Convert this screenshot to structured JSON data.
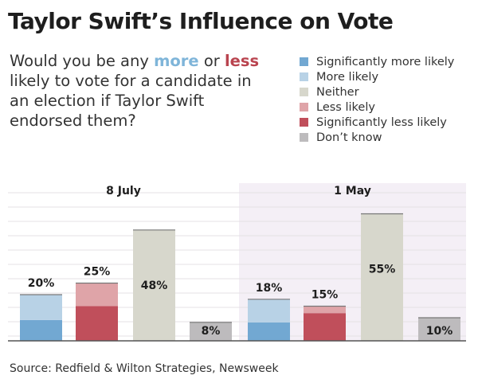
{
  "title": "Taylor Swift’s Influence on Vote",
  "question": {
    "part1": "Would you be any ",
    "more": "more",
    "part2": " or ",
    "less": "less",
    "part3": " likely to vote for a candidate in an election if Taylor Swift endorsed them?"
  },
  "legend": [
    {
      "label": "Significantly more likely",
      "color": "#72a8d2"
    },
    {
      "label": "More likely",
      "color": "#b8d2e6"
    },
    {
      "label": "Neither",
      "color": "#d7d7cc"
    },
    {
      "label": "Less likely",
      "color": "#dfa4a8"
    },
    {
      "label": "Significantly less likely",
      "color": "#c04f5b"
    },
    {
      "label": "Don’t know",
      "color": "#bdbbbd"
    }
  ],
  "source": "Source: Redfield & Wilton Strategies, Newsweek",
  "chart_data": {
    "type": "bar",
    "stacked": true,
    "ylim": [
      0,
      60
    ],
    "grid": true,
    "colors": {
      "sig_more": "#72a8d2",
      "more": "#b8d2e6",
      "neither": "#d7d7cc",
      "less": "#dfa4a8",
      "sig_less": "#c04f5b",
      "dont_know": "#bdbbbd",
      "panel_highlight": "#f4eff6"
    },
    "panels": [
      {
        "label": "8 July",
        "highlight": false,
        "bars": [
          {
            "label": "20%",
            "total": 20,
            "segments": [
              {
                "key": "sig_more",
                "value": 9
              },
              {
                "key": "more",
                "value": 11
              }
            ]
          },
          {
            "label": "25%",
            "total": 25,
            "segments": [
              {
                "key": "sig_less",
                "value": 15
              },
              {
                "key": "less",
                "value": 10
              }
            ]
          },
          {
            "label": "48%",
            "total": 48,
            "segments": [
              {
                "key": "neither",
                "value": 48
              }
            ]
          },
          {
            "label": "8%",
            "total": 8,
            "segments": [
              {
                "key": "dont_know",
                "value": 8
              }
            ]
          }
        ]
      },
      {
        "label": "1 May",
        "highlight": true,
        "bars": [
          {
            "label": "18%",
            "total": 18,
            "segments": [
              {
                "key": "sig_more",
                "value": 8
              },
              {
                "key": "more",
                "value": 10
              }
            ]
          },
          {
            "label": "15%",
            "total": 15,
            "segments": [
              {
                "key": "sig_less",
                "value": 12
              },
              {
                "key": "less",
                "value": 3
              }
            ]
          },
          {
            "label": "55%",
            "total": 55,
            "segments": [
              {
                "key": "neither",
                "value": 55
              }
            ]
          },
          {
            "label": "10%",
            "total": 10,
            "segments": [
              {
                "key": "dont_know",
                "value": 10
              }
            ]
          }
        ]
      }
    ]
  }
}
